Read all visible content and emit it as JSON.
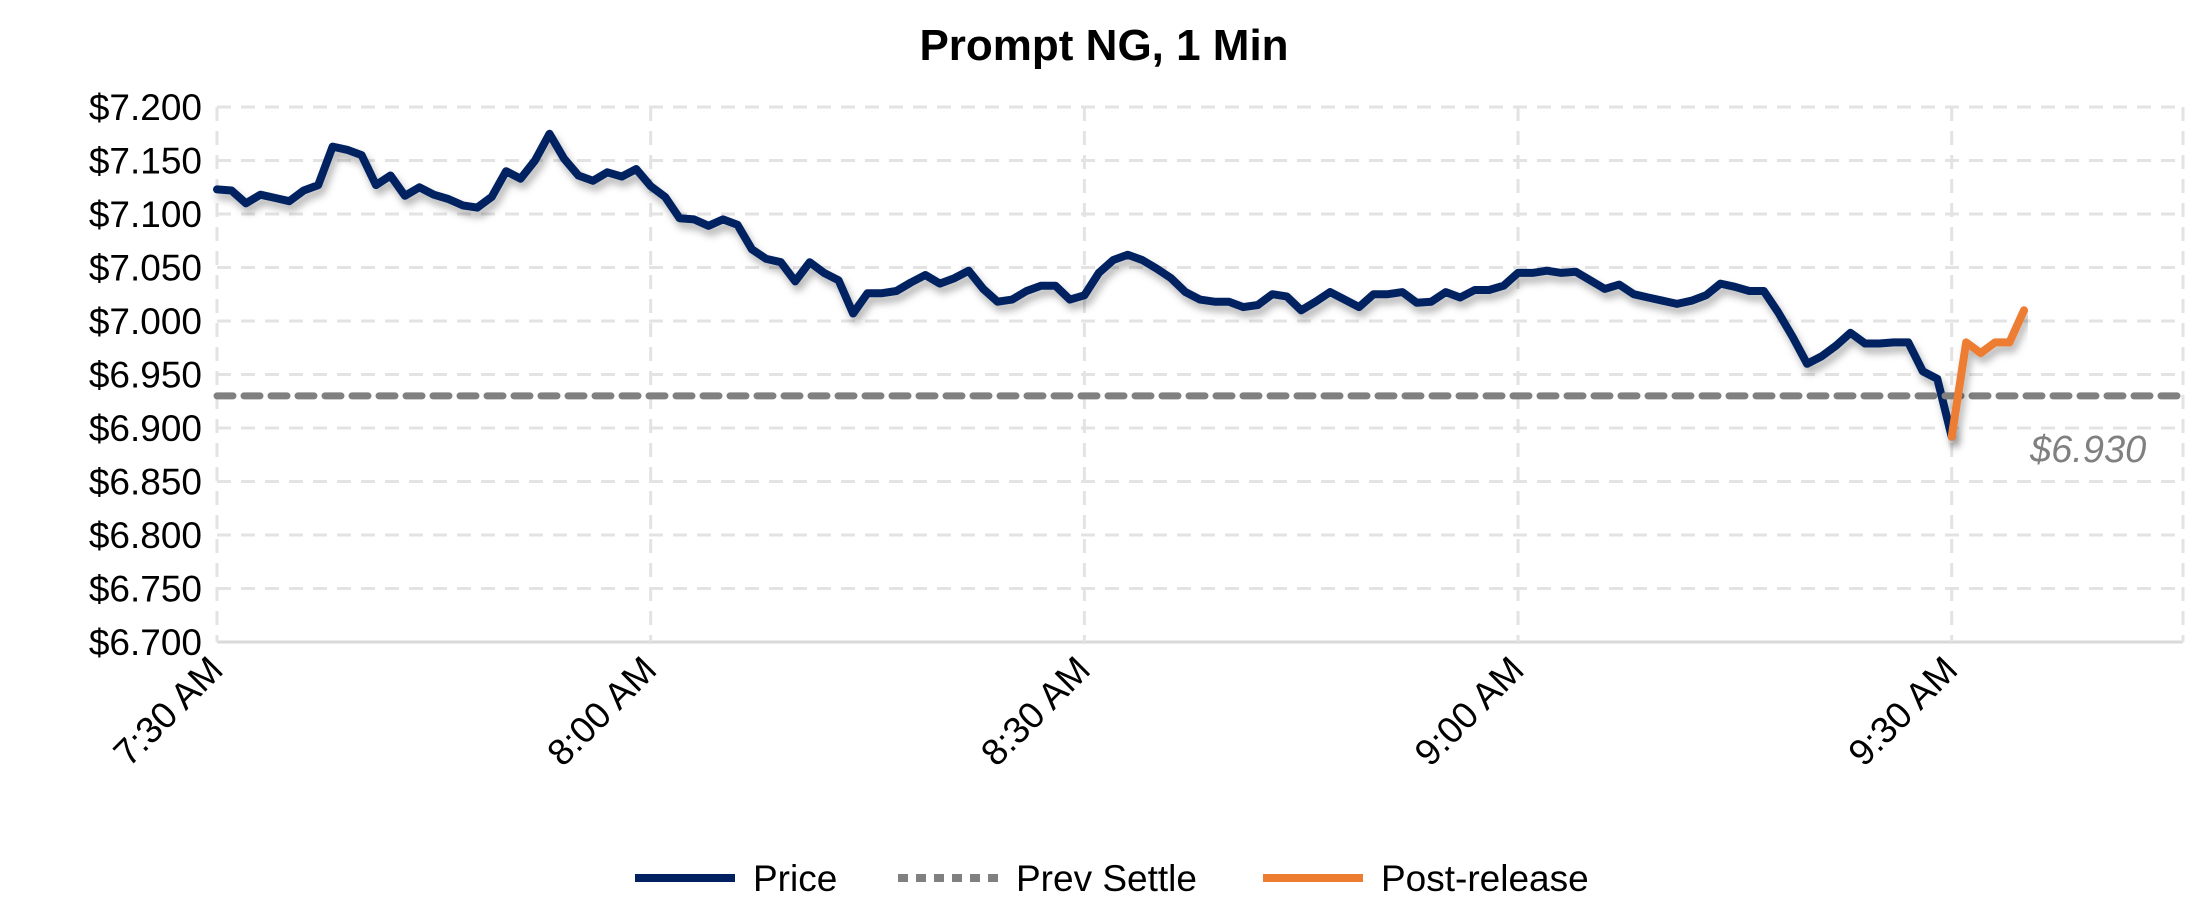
{
  "chart_data": {
    "type": "line",
    "title": "Prompt NG, 1 Min",
    "xlabel": "",
    "ylabel": "",
    "x_start": "7:30 AM",
    "x_interval_minutes": 1,
    "xlim": [
      "7:30 AM",
      "9:46 AM"
    ],
    "ylim": [
      6.7,
      7.2
    ],
    "y_ticks": [
      "$6.700",
      "$6.750",
      "$6.800",
      "$6.850",
      "$6.900",
      "$6.950",
      "$7.000",
      "$7.050",
      "$7.100",
      "$7.150",
      "$7.200"
    ],
    "x_ticks": [
      "7:30 AM",
      "8:00 AM",
      "8:30 AM",
      "9:00 AM",
      "9:30 AM"
    ],
    "grid": true,
    "legend_placement": "bottom",
    "colors": {
      "price": "#002060",
      "prev_settle": "#808080",
      "post_release": "#ED7D31"
    },
    "series": [
      {
        "name": "Price",
        "start": "7:30 AM",
        "values": [
          7.123,
          7.122,
          7.11,
          7.118,
          7.115,
          7.112,
          7.122,
          7.127,
          7.163,
          7.16,
          7.155,
          7.127,
          7.136,
          7.117,
          7.125,
          7.118,
          7.114,
          7.108,
          7.106,
          7.116,
          7.14,
          7.133,
          7.15,
          7.175,
          7.152,
          7.136,
          7.131,
          7.139,
          7.135,
          7.142,
          7.126,
          7.116,
          7.096,
          7.095,
          7.089,
          7.095,
          7.09,
          7.067,
          7.058,
          7.055,
          7.037,
          7.055,
          7.045,
          7.038,
          7.007,
          7.026,
          7.026,
          7.028,
          7.036,
          7.043,
          7.035,
          7.04,
          7.047,
          7.03,
          7.018,
          7.02,
          7.028,
          7.033,
          7.033,
          7.02,
          7.024,
          7.045,
          7.057,
          7.062,
          7.057,
          7.049,
          7.04,
          7.027,
          7.02,
          7.018,
          7.018,
          7.013,
          7.015,
          7.025,
          7.023,
          7.01,
          7.018,
          7.027,
          7.02,
          7.013,
          7.025,
          7.025,
          7.027,
          7.017,
          7.018,
          7.027,
          7.022,
          7.029,
          7.029,
          7.033,
          7.045,
          7.045,
          7.047,
          7.045,
          7.046,
          7.038,
          7.03,
          7.034,
          7.025,
          7.022,
          7.019,
          7.016,
          7.019,
          7.024,
          7.035,
          7.032,
          7.028,
          7.028,
          7.008,
          6.985,
          6.96,
          6.967,
          6.977,
          6.989,
          6.979,
          6.979,
          6.98,
          6.98,
          6.953,
          6.946,
          6.892
        ]
      },
      {
        "name": "Prev Settle",
        "value": 6.93,
        "label": "$6.930"
      },
      {
        "name": "Post-release",
        "start": "9:30 AM",
        "values": [
          6.892,
          6.98,
          6.97,
          6.98,
          6.98,
          7.01
        ]
      }
    ]
  }
}
